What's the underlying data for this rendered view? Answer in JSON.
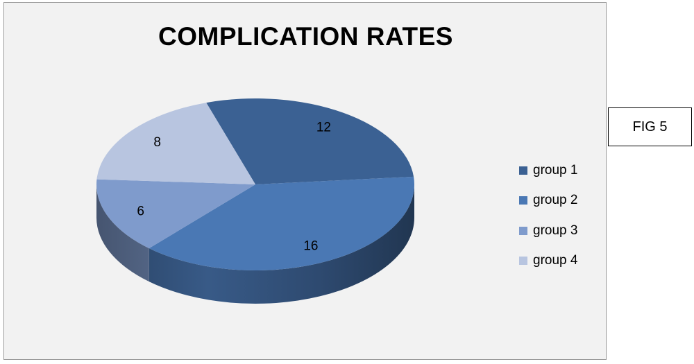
{
  "chart_data": {
    "type": "pie",
    "title": "COMPLICATION RATES",
    "categories": [
      "group 1",
      "group 2",
      "group 3",
      "group 4"
    ],
    "values": [
      12,
      16,
      6,
      8
    ],
    "colors": [
      "#3b6193",
      "#4a78b4",
      "#7f9bcc",
      "#b8c5e0"
    ],
    "legend_position": "right",
    "data_labels": true
  },
  "fig_label": "FIG 5"
}
